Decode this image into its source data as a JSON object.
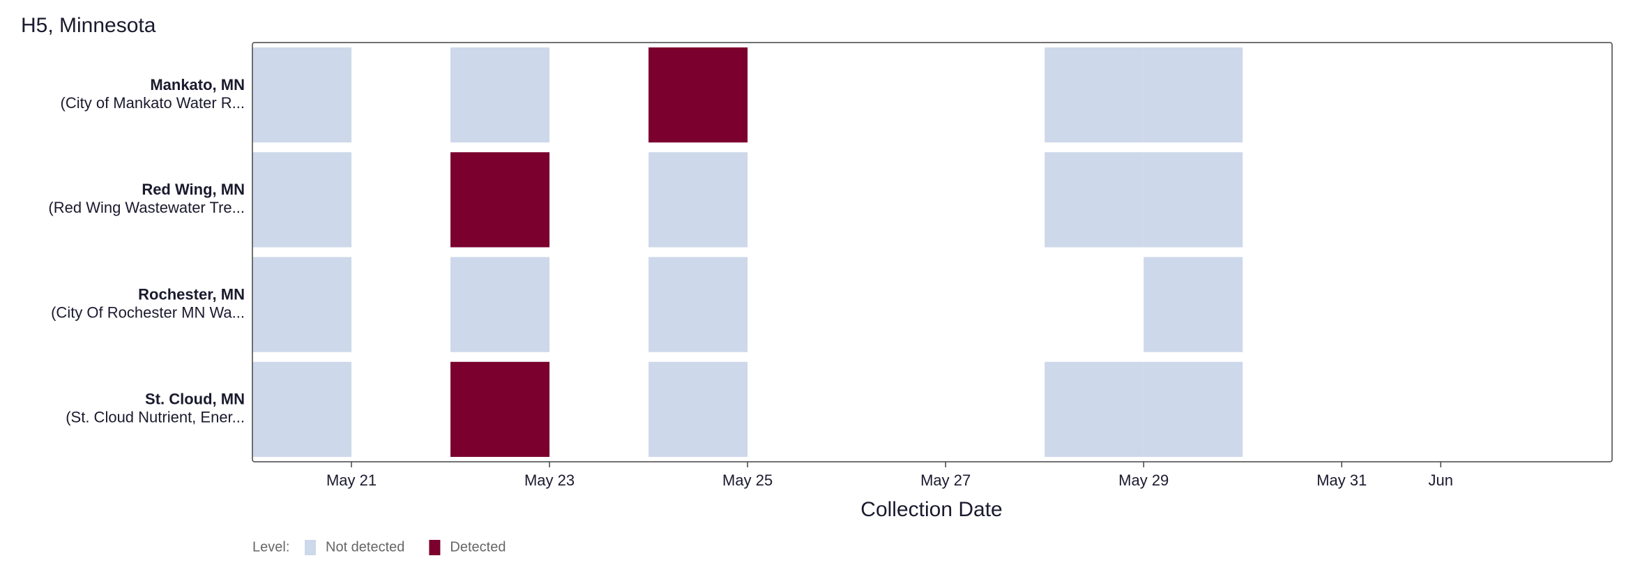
{
  "chart_data": {
    "type": "timeline-heatmap",
    "title": "H5, Minnesota",
    "x_label": "Collection Date",
    "rows": [
      {
        "name": "Mankato, MN",
        "detail": "(City of Mankato Water R..."
      },
      {
        "name": "Red Wing, MN",
        "detail": "(Red Wing Wastewater Tre..."
      },
      {
        "name": "Rochester, MN",
        "detail": "(City Of Rochester MN Wa..."
      },
      {
        "name": "St. Cloud, MN",
        "detail": "(St. Cloud Nutrient, Ener..."
      }
    ],
    "series": [
      {
        "name": "Not detected",
        "color": "#cdd8ea",
        "x": [
          [
            20,
            22,
            28,
            29
          ],
          [
            20,
            24,
            28,
            29
          ],
          [
            20,
            22,
            24,
            29
          ],
          [
            20,
            24,
            28,
            29
          ]
        ]
      },
      {
        "name": "Detected",
        "color": "#7b002d",
        "x": [
          [
            24
          ],
          [
            22
          ],
          [],
          [
            22
          ]
        ]
      }
    ],
    "xlim": [
      20,
      33.73
    ],
    "xticks": [
      {
        "value": 21,
        "label": "May 21"
      },
      {
        "value": 23,
        "label": "May 23"
      },
      {
        "value": 25,
        "label": "May 25"
      },
      {
        "value": 27,
        "label": "May 27"
      },
      {
        "value": 29,
        "label": "May 29"
      },
      {
        "value": 31,
        "label": "May 31"
      },
      {
        "value": 32,
        "label": "Jun"
      }
    ],
    "legend_title": "Level:"
  }
}
